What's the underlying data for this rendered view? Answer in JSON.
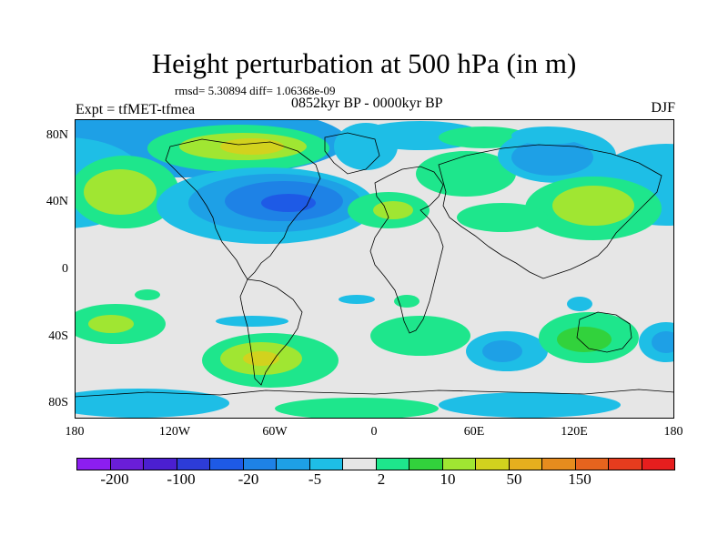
{
  "title": "Height perturbation at 500 hPa (in m)",
  "stats_line": "rmsd= 5.30894 diff= 1.06368e-09",
  "experiment_label": "Expt = tfMET-tfmea",
  "period_label": "0852kyr BP - 0000kyr BP",
  "season_label": "DJF",
  "y_axis_labels": [
    "80N",
    "40N",
    "0",
    "40S",
    "80S"
  ],
  "x_axis_labels": [
    "180",
    "120W",
    "60W",
    "0",
    "60E",
    "120E",
    "180"
  ],
  "legend": {
    "colors": [
      "#8c1ef0",
      "#6a1ed8",
      "#4b1fd0",
      "#2d3cd8",
      "#1e5ae6",
      "#1e82e6",
      "#1ea0e6",
      "#1ebee6",
      "#e6e6e6",
      "#1ee68c",
      "#32d23c",
      "#a0e632",
      "#d2d21e",
      "#e6af1e",
      "#e68c1e",
      "#e6641e",
      "#e63c1e",
      "#e61e1e"
    ],
    "tick_labels": [
      "-200",
      "-100",
      "-20",
      "-5",
      "2",
      "10",
      "50",
      "150"
    ]
  },
  "colors": {
    "background_field": "#e6e6e6",
    "blue_dark": "#1e5ae6",
    "blue_mid": "#1e82e6",
    "blue_light": "#1ea0e6",
    "cyan": "#1ebee6",
    "green_teal": "#1ee68c",
    "green": "#32d23c",
    "yellow_green": "#a0e632",
    "yellow": "#d2d21e",
    "coast": "#000000"
  }
}
